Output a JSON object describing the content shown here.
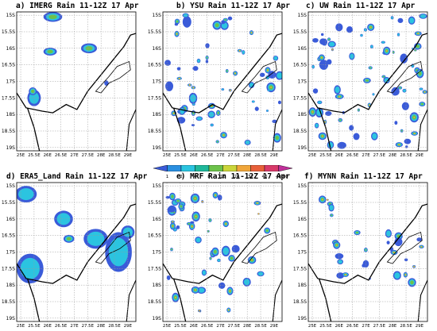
{
  "panels": [
    {
      "id": "a",
      "title": "a) IMERG Rain 11-12Z 17 Apr"
    },
    {
      "id": "b",
      "title": "b) YSU Rain 11-12Z 17 Apr"
    },
    {
      "id": "c",
      "title": "c) UW Rain 11-12Z 17 Apr"
    },
    {
      "id": "d",
      "title": "d) ERA5_Land Rain 11-12Z 17 Apr"
    },
    {
      "id": "e",
      "title": "e) MRF Rain 11-12Z 17 Apr"
    },
    {
      "id": "f",
      "title": "f) MYNN Rain 11-12Z 17 Apr"
    }
  ],
  "axes": {
    "y_ticks": [
      "15S",
      "15.5S",
      "16S",
      "16.5S",
      "17S",
      "17.5S",
      "18S",
      "18.5S",
      "19S"
    ],
    "x_ticks": [
      "25E",
      "25.5E",
      "26E",
      "26.5E",
      "27E",
      "27.5E",
      "28E",
      "28.5E",
      "29E"
    ]
  },
  "colorbar": {
    "levels": [
      "1",
      "2",
      "4",
      "8",
      "16",
      "24",
      "32",
      "40",
      "48",
      "60"
    ],
    "colors": [
      "#3a5bd9",
      "#2a8fe0",
      "#2bc4e0",
      "#1fb89a",
      "#6cc24a",
      "#cbd53a",
      "#f0a63a",
      "#e8603a",
      "#d83a6a",
      "#c02f9a"
    ]
  }
}
